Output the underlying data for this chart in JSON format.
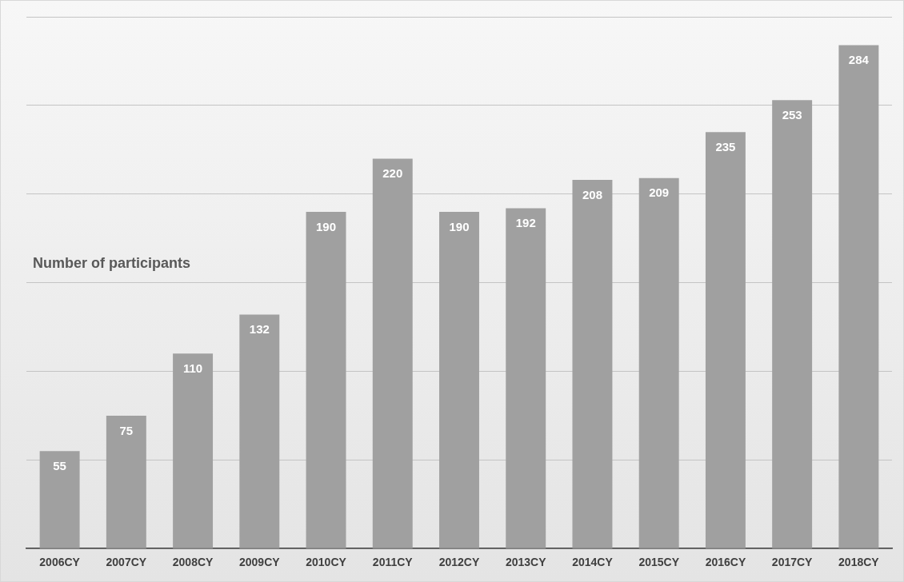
{
  "chart_data": {
    "type": "bar",
    "title": "Number of participants",
    "categories": [
      "2006CY",
      "2007CY",
      "2008CY",
      "2009CY",
      "2010CY",
      "2011CY",
      "2012CY",
      "2013CY",
      "2014CY",
      "2015CY",
      "2016CY",
      "2017CY",
      "2018CY"
    ],
    "values": [
      55,
      75,
      110,
      132,
      190,
      220,
      190,
      192,
      208,
      209,
      235,
      253,
      284
    ],
    "color": "#a0a0a0",
    "data_labels": true,
    "grid": "y",
    "tick_labels": "x",
    "ylim": [
      0,
      300
    ],
    "yticks": [
      {
        "value": 0,
        "label": null
      },
      {
        "value": 50,
        "label": null
      },
      {
        "value": 100,
        "label": null
      },
      {
        "value": 150,
        "label": null
      },
      {
        "value": 200,
        "label": null
      },
      {
        "value": 250,
        "label": null
      },
      {
        "value": 300,
        "label": null
      }
    ]
  }
}
